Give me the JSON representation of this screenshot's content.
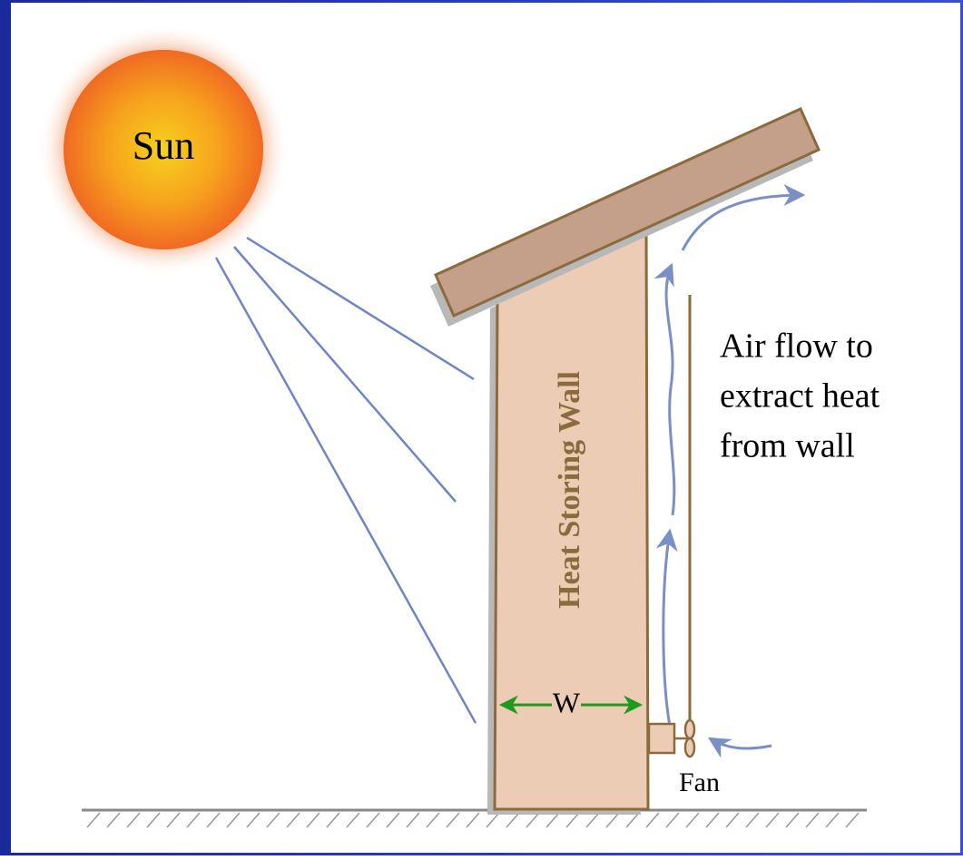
{
  "sun": {
    "label": "Sun"
  },
  "wall": {
    "label": "Heat Storing Wall",
    "width_label": "W"
  },
  "airflow": {
    "lines": [
      "Air flow to",
      "extract heat",
      "from wall"
    ]
  },
  "fan": {
    "label": "Fan"
  }
}
